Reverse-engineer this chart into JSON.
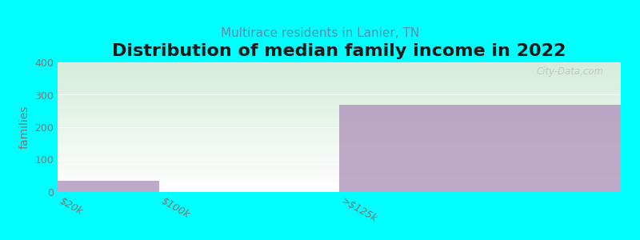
{
  "title": "Distribution of median family income in 2022",
  "subtitle": "Multirace residents in Lanier, TN",
  "background_color": "#00FFFF",
  "plot_bg_top": "#f0f4f8",
  "plot_bg_bottom": "#d4edda",
  "bar_color": "#b39ac0",
  "bar_alpha": 0.85,
  "categories": [
    "$20k",
    "$100k",
    ">$125k"
  ],
  "values": [
    35,
    0,
    270
  ],
  "bin_edges": [
    0,
    0.18,
    0.5,
    1.0
  ],
  "ylim": [
    0,
    400
  ],
  "yticks": [
    0,
    100,
    200,
    300,
    400
  ],
  "ylabel": "families",
  "title_fontsize": 16,
  "subtitle_fontsize": 11,
  "subtitle_color": "#5a8fa8",
  "watermark": "City-Data.com",
  "tick_color": "#777777",
  "tick_fontsize": 9,
  "ylabel_fontsize": 10
}
